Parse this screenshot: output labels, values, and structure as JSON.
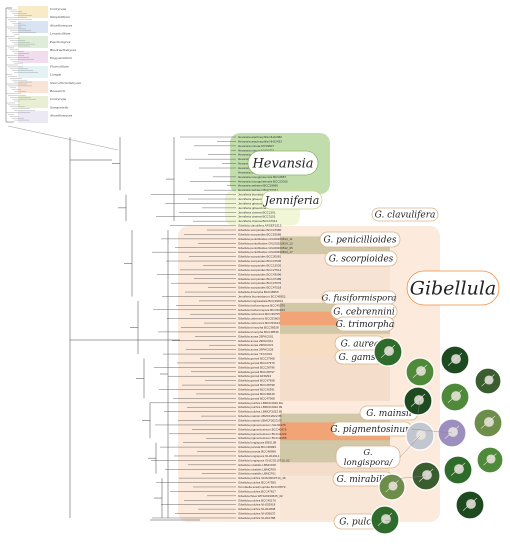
{
  "overview": {
    "labels": [
      "Cordyceps",
      "Simplicillium",
      "Akanthomyces",
      "Lecanicillium",
      "Paecilomyces",
      "Blackwellomyces",
      "Engyodontium",
      "Flavocillium",
      "Liangia",
      "Neurotrichommyces",
      "Beauveria",
      "Cordyceps",
      "Samsoniella",
      "Akanthomyces"
    ]
  },
  "clades": [
    {
      "name": "Hevansia",
      "color": "#9fc98a"
    },
    {
      "name": "Jenniferia",
      "color": "#e3ecb0"
    },
    {
      "name": "G. clavulifera",
      "color": "#f5c9a8"
    },
    {
      "name": "G. penicillioides",
      "color": "#cfc6a4"
    },
    {
      "name": "G. scorpioides",
      "color": "#f3dcc8"
    },
    {
      "name": "Gibellula",
      "color": "#f08a3c"
    },
    {
      "name": "G. fusiformispora",
      "color": "#cfc6a4"
    },
    {
      "name": "G. cebrennini",
      "color": "#f1a070"
    },
    {
      "name": "G. trimorpha",
      "color": "#cfc6a4"
    },
    {
      "name": "G. aurea",
      "color": "#f5dab8"
    },
    {
      "name": "G. gamsii",
      "color": "#f3dcc8"
    },
    {
      "name": "G. mainsii",
      "color": "#cfc6a4"
    },
    {
      "name": "G. pigmentosinum",
      "color": "#f1a070"
    },
    {
      "name": "G. longispora/ parvula",
      "color": "#cfc6a4"
    },
    {
      "name": "G. mirabilis",
      "color": "#f3dcc8"
    },
    {
      "name": "G. pulchra",
      "color": "#f3dcc8"
    }
  ],
  "tips": [
    "Hevansia arachnophila NHJ2480",
    "Hevansia arachnophila NHJ2433",
    "Hevansia minuta MY09607",
    "Hevansia minuta MY06702",
    "Hevansia nelumboides BCC2190",
    "Hevansia novoguineensis NHJ11923",
    "Hevansia novoguineensis CBS610.80",
    "Hevansia novoguineensis NHJ10608",
    "Hevansia arachnophila NHJ10469",
    "Hevansia novoguineensis BCC2867",
    "Hevansia novoguineensis BCC23015",
    "Hevansia websteri BCC29660",
    "Hevansia websteri BCC36041",
    "Jenniferia thomisidarum MY00089",
    "Jenniferia griseocinerea MY06606",
    "Jenniferia griseocinerea BCC42062",
    "Jenniferia griseocinerea BCC44683",
    "Jenniferia cinerea BCC2191",
    "Jenniferia cinerea BCC3151",
    "Jenniferia cinerea BCC47914",
    "Gibellula clavulifera ARSEF1915",
    "Gibellula scorpioides BCC47986",
    "Gibellula scorpioides BCC53589",
    "Gibellula penicillioides GNJ20200814_11",
    "Gibellula penicillioides GNJ20200814_13",
    "Gibellula penicillioides GNJ20200812_05",
    "Gibellula penicillioides GNJ20200814_17",
    "Gibellula scorpioides BCC20081",
    "Gibellula scorpioides BCC47530",
    "Gibellula scorpioides BCC13020",
    "Gibellula scorpioides BCC27514",
    "Gibellula scorpioides BCC43096",
    "Gibellula scorpioides BCC47489",
    "Gibellula scorpioides BCC47976",
    "Gibellula scorpioides BCC47518",
    "Gibellula dimorpha BCC48950",
    "Jenniferia thomisidarum BCC49952",
    "Gibellula longicaudata BCC49901",
    "Gibellula fusiformispora BCC45076",
    "Gibellula fusiformispora BCC60643",
    "Gibellula cebrennini BCC39705",
    "Gibellula cebrennini BCC53605",
    "Gibellula cebrennini BCC53613",
    "Gibellula trimorpha BCC38528",
    "Gibellula trimorpha BCC38536",
    "Gibellula aurea 29PAC001",
    "Gibellula aurea 29PAC011",
    "Gibellula aurea 29PAC021",
    "Gibellula aurea 29PAC028",
    "Gibellula aurea YFCC001",
    "Gibellula gamsii BCC27968",
    "Gibellula gamsii BCC27970",
    "Gibellula gamsii BCC28796",
    "Gibellula gamsii BCC28797",
    "Gibellula gamsii EFR294",
    "Gibellula gamsii BCC47958",
    "Gibellula gamsii BCC28798",
    "Gibellula gamsii BCC30391",
    "Gibellula gamsii BCC38449",
    "Gibellula gamsii BCC47968",
    "Gibellula pulchra LBMCF2022.DA",
    "Gibellula pulchra LBMCF2022.09",
    "Gibellula pulchra LBMCF2022.85",
    "Gibellula mainsii LBMCF2022.86",
    "Gibellula mainsii LBMCF2023.09",
    "Gibellula pigmentosinum NHJ11976",
    "Gibellula pigmentosinum BCC40978",
    "Gibellula pigmentosinum BCC41203",
    "Gibellula pigmentosinum BCC41255",
    "Gibellula longispora EBSL08",
    "Gibellula parvula BCC48999",
    "Gibellula parvula BCC48998",
    "Gibellula longispora NHJ12014",
    "Gibellula longispora GNJ20210710_02",
    "Gibellula mirabilis LBMCF08",
    "Gibellula mirabilis LBMCF09",
    "Gibellula mirabilis LBMCF01",
    "Gibellula pulchra GNJ20200714_46",
    "Gibellula pulchra BCC47555",
    "Torrubiella arachnophila BCC47879",
    "Gibellula pulchra BCC47817",
    "Gibellula flava WFS20190625_02",
    "Gibellula pulchra BCC45176",
    "Gibellula pulchra NHJ03918",
    "Gibellula pulchra NHJ10808",
    "Gibellula pulchra NHJ05637",
    "Gibellula pulchra NHJ10788"
  ],
  "photo_palette": [
    "#2f6b2a",
    "#4f8a3a",
    "#1e4a20",
    "#9c8fbf",
    "#6d8e4a",
    "#3a5d30",
    "#c2c6cf"
  ]
}
